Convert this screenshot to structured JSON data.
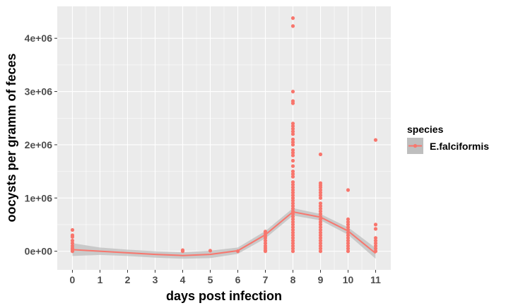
{
  "chart_data": {
    "type": "scatter",
    "xlabel": "days post infection",
    "ylabel": "oocysts per gramm of feces",
    "xlim": [
      -0.55,
      11.55
    ],
    "ylim": [
      -350000,
      4600000
    ],
    "x_ticks": [
      0,
      1,
      2,
      3,
      4,
      5,
      6,
      7,
      8,
      9,
      10,
      11
    ],
    "x_tick_labels": [
      "0",
      "1",
      "2",
      "3",
      "4",
      "5",
      "6",
      "7",
      "8",
      "9",
      "10",
      "11"
    ],
    "y_ticks": [
      0,
      1000000,
      2000000,
      3000000,
      4000000
    ],
    "y_tick_labels": [
      "0e+00",
      "1e+06",
      "2e+06",
      "3e+06",
      "4e+06"
    ],
    "grid": true,
    "legend": {
      "title": "species",
      "position": "right",
      "entries": [
        "E.falciformis"
      ]
    },
    "colors": {
      "series": "#F8766D",
      "panel": "#EBEBEB",
      "grid": "#FFFFFF",
      "ribbon": "#BEBEBE"
    },
    "series": [
      {
        "name": "E.falciformis",
        "points": [
          [
            0,
            400000
          ],
          [
            0,
            300000
          ],
          [
            0,
            270000
          ],
          [
            0,
            200000
          ],
          [
            0,
            150000
          ],
          [
            0,
            100000
          ],
          [
            0,
            60000
          ],
          [
            0,
            30000
          ],
          [
            0,
            0
          ],
          [
            4,
            20000
          ],
          [
            4,
            0
          ],
          [
            5,
            10000
          ],
          [
            6,
            0
          ],
          [
            7,
            370000
          ],
          [
            7,
            330000
          ],
          [
            7,
            290000
          ],
          [
            7,
            250000
          ],
          [
            7,
            200000
          ],
          [
            7,
            150000
          ],
          [
            7,
            100000
          ],
          [
            7,
            60000
          ],
          [
            7,
            20000
          ],
          [
            7,
            0
          ],
          [
            8,
            4380000
          ],
          [
            8,
            4230000
          ],
          [
            8,
            3000000
          ],
          [
            8,
            2820000
          ],
          [
            8,
            2780000
          ],
          [
            8,
            2400000
          ],
          [
            8,
            2350000
          ],
          [
            8,
            2300000
          ],
          [
            8,
            2250000
          ],
          [
            8,
            2200000
          ],
          [
            8,
            2100000
          ],
          [
            8,
            2050000
          ],
          [
            8,
            2000000
          ],
          [
            8,
            1900000
          ],
          [
            8,
            1850000
          ],
          [
            8,
            1800000
          ],
          [
            8,
            1700000
          ],
          [
            8,
            1600000
          ],
          [
            8,
            1500000
          ],
          [
            8,
            1450000
          ],
          [
            8,
            1400000
          ],
          [
            8,
            1300000
          ],
          [
            8,
            1250000
          ],
          [
            8,
            1200000
          ],
          [
            8,
            1150000
          ],
          [
            8,
            1100000
          ],
          [
            8,
            1050000
          ],
          [
            8,
            1000000
          ],
          [
            8,
            950000
          ],
          [
            8,
            900000
          ],
          [
            8,
            850000
          ],
          [
            8,
            800000
          ],
          [
            8,
            750000
          ],
          [
            8,
            700000
          ],
          [
            8,
            650000
          ],
          [
            8,
            600000
          ],
          [
            8,
            550000
          ],
          [
            8,
            500000
          ],
          [
            8,
            450000
          ],
          [
            8,
            400000
          ],
          [
            8,
            350000
          ],
          [
            8,
            300000
          ],
          [
            8,
            250000
          ],
          [
            8,
            200000
          ],
          [
            8,
            150000
          ],
          [
            8,
            100000
          ],
          [
            8,
            50000
          ],
          [
            8,
            0
          ],
          [
            9,
            1820000
          ],
          [
            9,
            1280000
          ],
          [
            9,
            1240000
          ],
          [
            9,
            1200000
          ],
          [
            9,
            1150000
          ],
          [
            9,
            1100000
          ],
          [
            9,
            1050000
          ],
          [
            9,
            1000000
          ],
          [
            9,
            900000
          ],
          [
            9,
            850000
          ],
          [
            9,
            800000
          ],
          [
            9,
            750000
          ],
          [
            9,
            700000
          ],
          [
            9,
            650000
          ],
          [
            9,
            600000
          ],
          [
            9,
            550000
          ],
          [
            9,
            500000
          ],
          [
            9,
            450000
          ],
          [
            9,
            400000
          ],
          [
            9,
            350000
          ],
          [
            9,
            300000
          ],
          [
            9,
            250000
          ],
          [
            9,
            200000
          ],
          [
            9,
            150000
          ],
          [
            9,
            100000
          ],
          [
            9,
            50000
          ],
          [
            9,
            0
          ],
          [
            10,
            1150000
          ],
          [
            10,
            600000
          ],
          [
            10,
            550000
          ],
          [
            10,
            500000
          ],
          [
            10,
            450000
          ],
          [
            10,
            400000
          ],
          [
            10,
            350000
          ],
          [
            10,
            300000
          ],
          [
            10,
            250000
          ],
          [
            10,
            200000
          ],
          [
            10,
            150000
          ],
          [
            10,
            100000
          ],
          [
            10,
            50000
          ],
          [
            10,
            0
          ],
          [
            11,
            2090000
          ],
          [
            11,
            500000
          ],
          [
            11,
            420000
          ],
          [
            11,
            250000
          ],
          [
            11,
            200000
          ],
          [
            11,
            150000
          ],
          [
            11,
            100000
          ],
          [
            11,
            50000
          ],
          [
            11,
            0
          ]
        ],
        "smooth": {
          "x": [
            0,
            1,
            2,
            3,
            4,
            5,
            6,
            7,
            8,
            9,
            10,
            11
          ],
          "y": [
            30000,
            0,
            -30000,
            -60000,
            -80000,
            -60000,
            10000,
            310000,
            740000,
            640000,
            380000,
            -40000
          ],
          "ymin": [
            -90000,
            -70000,
            -90000,
            -120000,
            -140000,
            -130000,
            -50000,
            240000,
            670000,
            580000,
            310000,
            -140000
          ],
          "ymax": [
            150000,
            70000,
            30000,
            0,
            -20000,
            10000,
            70000,
            380000,
            810000,
            700000,
            450000,
            60000
          ]
        }
      }
    ]
  }
}
